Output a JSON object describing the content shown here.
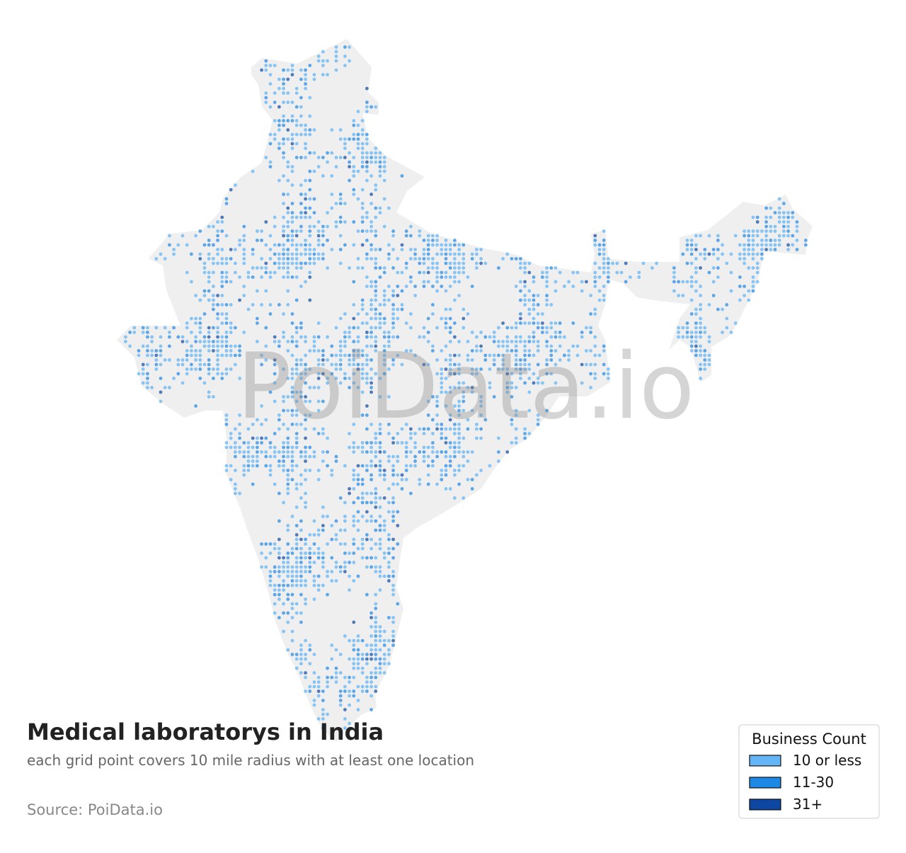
{
  "map": {
    "title": "Medical laboratorys in India",
    "subtitle": "each grid point covers 10 mile radius with at least one location",
    "source": "Source: PoiData.io",
    "watermark": "PoiData.io",
    "legend": {
      "title": "Business Count",
      "items": [
        {
          "label": "10 or less",
          "color": "#64b5f6"
        },
        {
          "label": "11-30",
          "color": "#1e88e5"
        },
        {
          "label": "31+",
          "color": "#0d47a1"
        }
      ]
    }
  }
}
